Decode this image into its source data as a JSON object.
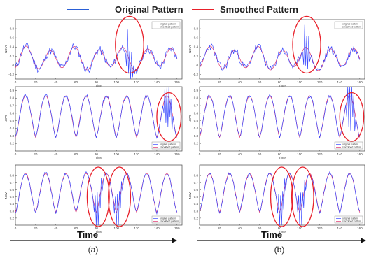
{
  "colors": {
    "original": "#3b4bff",
    "smoothed": "#e0306a",
    "highlight": "#e8202a",
    "legend_original": "#2a5fd6",
    "legend_smoothed": "#e8202a",
    "axis": "#444444"
  },
  "legend": {
    "original_label": "Original Pattern",
    "smoothed_label": "Smoothed Pattern"
  },
  "bottom": {
    "time_label_left": "Time",
    "time_label_right": "Time",
    "label_a": "(a)",
    "label_b": "(b)"
  },
  "chart_data": [
    {
      "panel": "a-top",
      "type": "line",
      "xlabel": "Time",
      "ylabel": "NDVI",
      "xlim": [
        0,
        165
      ],
      "ylim": [
        -0.3,
        1.0
      ],
      "xticks": [
        "0",
        "20",
        "40",
        "60",
        "80",
        "100",
        "120",
        "140",
        "160"
      ],
      "yticks": [
        "-0.2",
        "0",
        "0.2",
        "0.4",
        "0.6",
        "0.8"
      ],
      "series": [
        {
          "name": "original pattern"
        },
        {
          "name": "smoothed pattern"
        }
      ],
      "highlights": [
        {
          "x": 113,
          "y": 0.45,
          "rx": 14,
          "ry": 0.62
        }
      ]
    },
    {
      "panel": "b-top",
      "type": "line",
      "xlabel": "Time",
      "ylabel": "NDVI",
      "xlim": [
        0,
        165
      ],
      "ylim": [
        -0.3,
        1.0
      ],
      "xticks": [
        "0",
        "20",
        "40",
        "60",
        "80",
        "100",
        "120",
        "140",
        "160"
      ],
      "yticks": [
        "-0.2",
        "0",
        "0.2",
        "0.4",
        "0.6",
        "0.8"
      ],
      "series": [
        {
          "name": "original pattern"
        },
        {
          "name": "smoothed pattern"
        }
      ],
      "highlights": [
        {
          "x": 107,
          "y": 0.45,
          "rx": 14,
          "ry": 0.62
        }
      ]
    },
    {
      "panel": "a-mid",
      "type": "line",
      "xlabel": "Time",
      "ylabel": "NDVI",
      "xlim": [
        0,
        165
      ],
      "ylim": [
        0.1,
        0.95
      ],
      "xticks": [
        "0",
        "20",
        "40",
        "60",
        "80",
        "100",
        "120",
        "140",
        "160"
      ],
      "yticks": [
        "0.2",
        "0.3",
        "0.4",
        "0.5",
        "0.6",
        "0.7",
        "0.8",
        "0.9"
      ],
      "series": [
        {
          "name": "original pattern"
        },
        {
          "name": "smoothed pattern"
        }
      ],
      "highlights": [
        {
          "x": 152,
          "y": 0.55,
          "rx": 12,
          "ry": 0.32
        }
      ]
    },
    {
      "panel": "b-mid",
      "type": "line",
      "xlabel": "Time",
      "ylabel": "NDVI",
      "xlim": [
        0,
        165
      ],
      "ylim": [
        0.1,
        0.95
      ],
      "xticks": [
        "0",
        "20",
        "40",
        "60",
        "80",
        "100",
        "120",
        "140",
        "160"
      ],
      "yticks": [
        "0.2",
        "0.3",
        "0.4",
        "0.5",
        "0.6",
        "0.7",
        "0.8",
        "0.9"
      ],
      "series": [
        {
          "name": "original pattern"
        },
        {
          "name": "smoothed pattern"
        }
      ],
      "highlights": [
        {
          "x": 152,
          "y": 0.55,
          "rx": 12,
          "ry": 0.32
        }
      ]
    },
    {
      "panel": "a-bot",
      "type": "line",
      "xlabel": "Time",
      "ylabel": "NDVI",
      "xlim": [
        0,
        165
      ],
      "ylim": [
        0.1,
        0.95
      ],
      "xticks": [
        "0",
        "20",
        "40",
        "60",
        "80",
        "100",
        "120",
        "140",
        "160"
      ],
      "yticks": [
        "0.2",
        "0.3",
        "0.4",
        "0.5",
        "0.6",
        "0.7",
        "0.8"
      ],
      "series": [
        {
          "name": "original pattern"
        },
        {
          "name": "smoothed pattern"
        }
      ],
      "highlights": [
        {
          "x": 82,
          "y": 0.5,
          "rx": 11,
          "ry": 0.42
        },
        {
          "x": 103,
          "y": 0.5,
          "rx": 11,
          "ry": 0.42
        }
      ]
    },
    {
      "panel": "b-bot",
      "type": "line",
      "xlabel": "Time",
      "ylabel": "NDVI",
      "xlim": [
        0,
        165
      ],
      "ylim": [
        0.1,
        0.95
      ],
      "xticks": [
        "0",
        "20",
        "40",
        "60",
        "80",
        "100",
        "120",
        "140",
        "160"
      ],
      "yticks": [
        "0.2",
        "0.3",
        "0.4",
        "0.5",
        "0.6",
        "0.7",
        "0.8"
      ],
      "series": [
        {
          "name": "original pattern"
        },
        {
          "name": "smoothed pattern"
        }
      ],
      "highlights": [
        {
          "x": 82,
          "y": 0.5,
          "rx": 11,
          "ry": 0.42
        },
        {
          "x": 103,
          "y": 0.5,
          "rx": 11,
          "ry": 0.42
        }
      ]
    }
  ]
}
